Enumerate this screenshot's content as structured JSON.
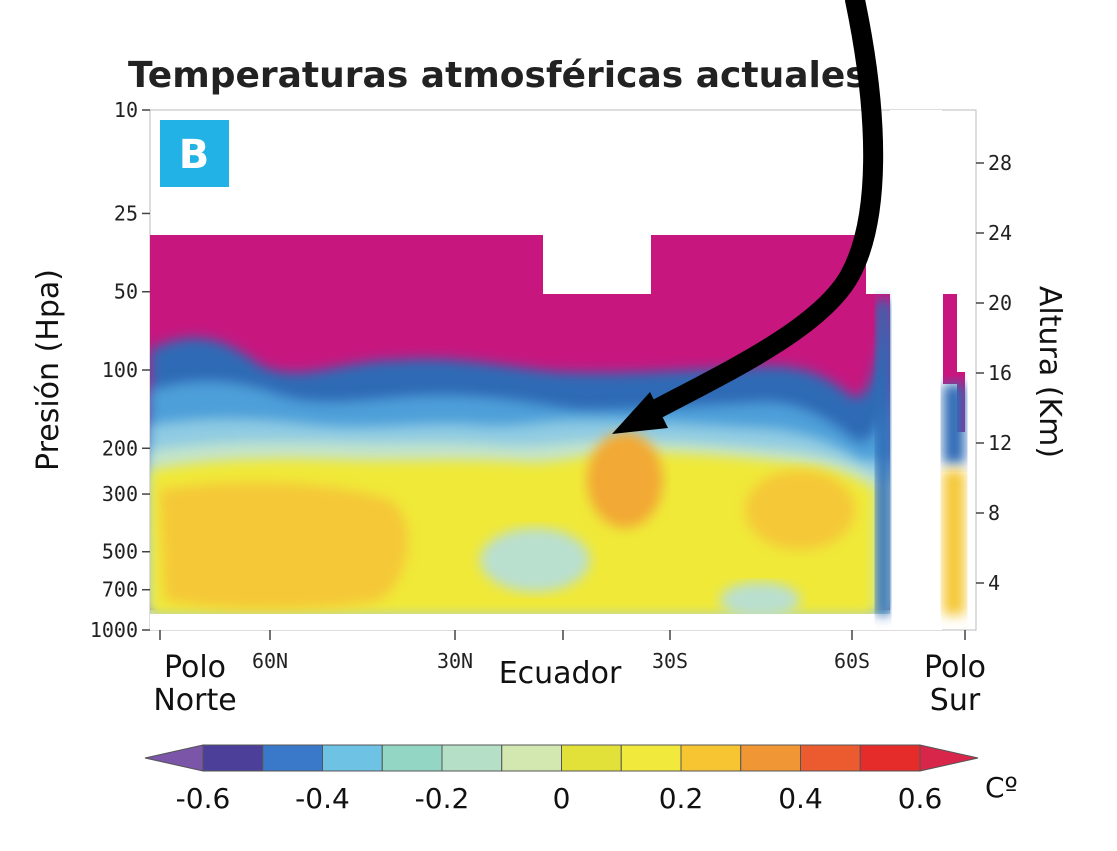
{
  "chart_data": {
    "type": "heatmap",
    "title": "Temperaturas atmosféricas actuales",
    "panel_label": "B",
    "ylabel": "Presión (Hpa)",
    "y2label": "Altura (Km)",
    "y_scale": "log",
    "ylim": [
      1000,
      10
    ],
    "y_ticks": [
      "10",
      "25",
      "50",
      "100",
      "200",
      "300",
      "500",
      "700",
      "1000"
    ],
    "y2_ticks": [
      "28",
      "24",
      "20",
      "16",
      "12",
      "8",
      "4"
    ],
    "x_ticks": [
      "60N",
      "30N",
      "30S",
      "60S"
    ],
    "x_region_labels": {
      "north_pole": [
        "Polo",
        "Norte"
      ],
      "equator": "Ecuador",
      "south_pole": [
        "Polo",
        "Sur"
      ]
    },
    "colorbar": {
      "unit": "Cº",
      "labels": [
        "-0.6",
        "-0.4",
        "-0.2",
        "0",
        "0.2",
        "0.4",
        "0.6"
      ],
      "colors": [
        "#4b3f99",
        "#3a78c9",
        "#6ec3e4",
        "#94d6c4",
        "#b6dfc8",
        "#d3e7b0",
        "#e2e13a",
        "#f1ea3c",
        "#f7c531",
        "#f19634",
        "#ec5a2f",
        "#e62b2b"
      ],
      "low_arrow_color": "#7a55a8",
      "high_arrow_color": "#d8264a"
    },
    "palette": {
      "stratosphere": "#c7177f",
      "deep_blue": "#2f6bb5",
      "mid_blue": "#4e9fd9",
      "light_blue": "#8fcbe3",
      "pale_green": "#c3e4cc",
      "yellow": "#f0e938",
      "orange_yellow": "#f5c838",
      "orange": "#f29a35",
      "badge": "#22b2e6"
    }
  }
}
